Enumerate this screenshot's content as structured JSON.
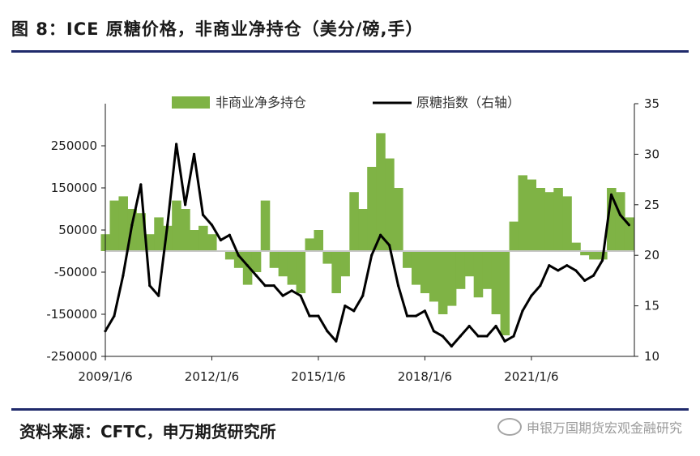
{
  "header": {
    "title": "图 8：ICE 原糖价格，非商业净持仓（美分/磅,手）"
  },
  "footer": {
    "source": "资料来源：CFTC，申万期货研究所",
    "watermark": "申银万国期货宏观金融研究"
  },
  "chart_data": {
    "type": "area+line",
    "legend_position": "top",
    "colors": {
      "area": "#7fb345",
      "line": "#000000",
      "zero_line": "#c8c8c8",
      "axis": "#1a1a1a"
    },
    "left_axis": {
      "ylim": [
        -250000,
        350000
      ],
      "ticks": [
        250000,
        150000,
        50000,
        -50000,
        -150000,
        -250000
      ]
    },
    "right_axis": {
      "ylim": [
        10,
        35
      ],
      "ticks": [
        35,
        30,
        25,
        20,
        15,
        10
      ]
    },
    "x_ticks": [
      "2009/1/6",
      "2012/1/6",
      "2015/1/6",
      "2018/1/6",
      "2021/1/6"
    ],
    "x_range": [
      2009.0,
      2023.9
    ],
    "series": [
      {
        "name": "非商业净多持仓",
        "kind": "area",
        "axis": "left",
        "x": [
          2009.0,
          2009.25,
          2009.5,
          2009.75,
          2010.0,
          2010.25,
          2010.5,
          2010.75,
          2011.0,
          2011.25,
          2011.5,
          2011.75,
          2012.0,
          2012.25,
          2012.5,
          2012.75,
          2013.0,
          2013.25,
          2013.5,
          2013.75,
          2014.0,
          2014.25,
          2014.5,
          2014.75,
          2015.0,
          2015.25,
          2015.5,
          2015.75,
          2016.0,
          2016.25,
          2016.5,
          2016.75,
          2017.0,
          2017.25,
          2017.5,
          2017.75,
          2018.0,
          2018.25,
          2018.5,
          2018.75,
          2019.0,
          2019.25,
          2019.5,
          2019.75,
          2020.0,
          2020.25,
          2020.5,
          2020.75,
          2021.0,
          2021.25,
          2021.5,
          2021.75,
          2022.0,
          2022.25,
          2022.5,
          2022.75,
          2023.0,
          2023.25,
          2023.5,
          2023.75
        ],
        "values": [
          40000,
          120000,
          130000,
          100000,
          90000,
          40000,
          80000,
          60000,
          120000,
          100000,
          50000,
          60000,
          40000,
          0,
          -20000,
          -40000,
          -80000,
          -50000,
          120000,
          -40000,
          -60000,
          -80000,
          -100000,
          30000,
          50000,
          -30000,
          -100000,
          -60000,
          140000,
          100000,
          200000,
          280000,
          220000,
          150000,
          -40000,
          -80000,
          -100000,
          -120000,
          -150000,
          -130000,
          -90000,
          -60000,
          -110000,
          -90000,
          -150000,
          -200000,
          70000,
          180000,
          170000,
          150000,
          140000,
          150000,
          130000,
          20000,
          -10000,
          -20000,
          -20000,
          150000,
          140000,
          80000
        ]
      },
      {
        "name": "原糖指数（右轴）",
        "kind": "line",
        "axis": "right",
        "x": [
          2009.0,
          2009.25,
          2009.5,
          2009.75,
          2010.0,
          2010.25,
          2010.5,
          2010.75,
          2011.0,
          2011.25,
          2011.5,
          2011.75,
          2012.0,
          2012.25,
          2012.5,
          2012.75,
          2013.0,
          2013.25,
          2013.5,
          2013.75,
          2014.0,
          2014.25,
          2014.5,
          2014.75,
          2015.0,
          2015.25,
          2015.5,
          2015.75,
          2016.0,
          2016.25,
          2016.5,
          2016.75,
          2017.0,
          2017.25,
          2017.5,
          2017.75,
          2018.0,
          2018.25,
          2018.5,
          2018.75,
          2019.0,
          2019.25,
          2019.5,
          2019.75,
          2020.0,
          2020.25,
          2020.5,
          2020.75,
          2021.0,
          2021.25,
          2021.5,
          2021.75,
          2022.0,
          2022.25,
          2022.5,
          2022.75,
          2023.0,
          2023.25,
          2023.5,
          2023.75
        ],
        "values": [
          12.5,
          14,
          18,
          23,
          27,
          17,
          16,
          23,
          31,
          25,
          30,
          24,
          23,
          21.5,
          22,
          20,
          19,
          18,
          17,
          17,
          16,
          16.5,
          16,
          14,
          14,
          12.5,
          11.5,
          15,
          14.5,
          16,
          20,
          22,
          21,
          17,
          14,
          14,
          14.5,
          12.5,
          12,
          11,
          12,
          13,
          12,
          12,
          13,
          11.5,
          12,
          14.5,
          16,
          17,
          19,
          18.5,
          19,
          18.5,
          17.5,
          18,
          19.5,
          26,
          24,
          23
        ]
      }
    ]
  }
}
